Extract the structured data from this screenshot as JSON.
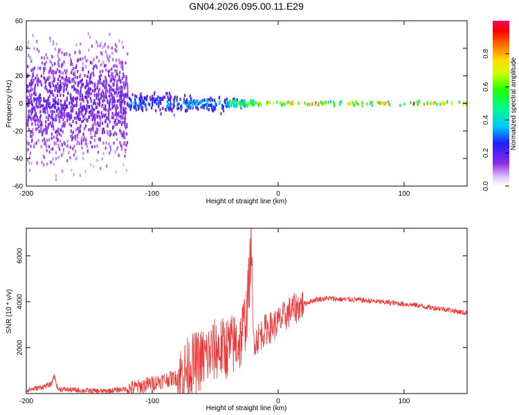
{
  "title": "GN04.2026.095.00.11.E29",
  "chart_data": [
    {
      "type": "heatmap",
      "xlabel": "Height of straight line (km)",
      "ylabel": "Frequency (Hz)",
      "xlim": [
        -200,
        150
      ],
      "ylim": [
        -60,
        60
      ],
      "x_ticks": [
        -200,
        -100,
        0,
        100
      ],
      "y_ticks": [
        -60,
        -40,
        -20,
        0,
        20,
        40,
        60
      ],
      "colorbar": {
        "label": "Normalized spectral amplitude",
        "range": [
          0.0,
          1.0
        ],
        "ticks": [
          0.0,
          0.2,
          0.4,
          0.6,
          0.8
        ],
        "tick_labels": [
          "0.0",
          "0.2",
          "0.4",
          "0.6",
          "0.8"
        ]
      },
      "bands": [
        {
          "x_start": -200,
          "x_end": -120,
          "freq_center": 0,
          "half_width_hz": 60,
          "amplitude": 0.2
        },
        {
          "x_start": -120,
          "x_end": -80,
          "freq_center": 0,
          "half_width_hz": 10,
          "amplitude": 0.35
        },
        {
          "x_start": -80,
          "x_end": -40,
          "freq_center": 0,
          "half_width_hz": 8,
          "amplitude": 0.4
        },
        {
          "x_start": -40,
          "x_end": -20,
          "freq_center": 0,
          "half_width_hz": 4,
          "amplitude": 0.65
        },
        {
          "x_start": -20,
          "x_end": 150,
          "freq_center": 0,
          "half_width_hz": 2,
          "amplitude": 0.95
        }
      ]
    },
    {
      "type": "line",
      "xlabel": "Height of straight line (km)",
      "ylabel": "SNR (10 * v/v)",
      "xlim": [
        -200,
        150
      ],
      "ylim": [
        0,
        7200
      ],
      "x_ticks": [
        -200,
        -100,
        0,
        100
      ],
      "y_ticks": [
        2000,
        4000,
        6000
      ],
      "color": "#ee3333",
      "x": [
        -200,
        -190,
        -180,
        -178,
        -175,
        -160,
        -140,
        -120,
        -110,
        -100,
        -90,
        -80,
        -75,
        -70,
        -60,
        -50,
        -40,
        -30,
        -25,
        -22,
        -21.5,
        -21,
        -20,
        -18,
        -15,
        -10,
        -5,
        0,
        10,
        20,
        30,
        40,
        50,
        60,
        70,
        80,
        90,
        100,
        110,
        120,
        130,
        140,
        150
      ],
      "y": [
        150,
        250,
        400,
        800,
        200,
        150,
        100,
        200,
        300,
        450,
        600,
        700,
        900,
        1200,
        1500,
        1900,
        2000,
        2300,
        3500,
        5600,
        7200,
        5800,
        2500,
        2300,
        2500,
        2800,
        2900,
        3100,
        3600,
        3900,
        4100,
        4150,
        4100,
        4100,
        4050,
        4000,
        3950,
        3900,
        3850,
        3750,
        3700,
        3600,
        3500
      ],
      "noise_envelope": [
        {
          "x_start": -200,
          "x_end": -120,
          "amplitude": 120
        },
        {
          "x_start": -120,
          "x_end": -80,
          "amplitude": 350
        },
        {
          "x_start": -80,
          "x_end": -20,
          "amplitude": 1400
        },
        {
          "x_start": -20,
          "x_end": 20,
          "amplitude": 700
        },
        {
          "x_start": 20,
          "x_end": 150,
          "amplitude": 120
        }
      ]
    }
  ]
}
